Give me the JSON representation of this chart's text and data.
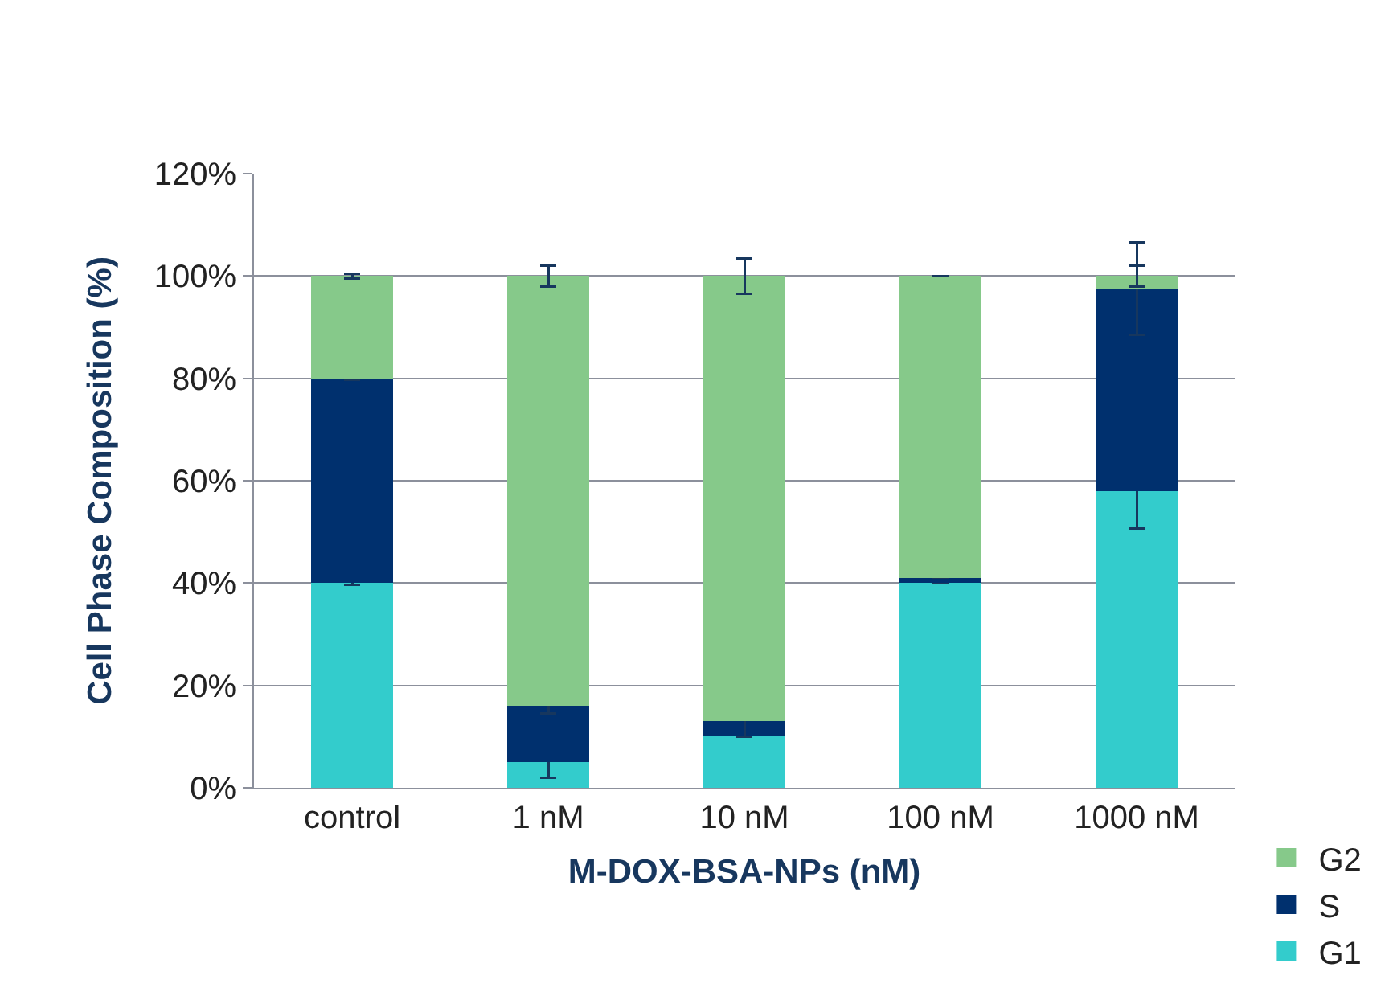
{
  "chart_data": {
    "type": "bar",
    "stacked": true,
    "xlabel": "M-DOX-BSA-NPs (nM)",
    "ylabel": "Cell Phase Composition (%)",
    "categories": [
      "control",
      "1 nM",
      "10 nM",
      "100 nM",
      "1000 nM"
    ],
    "series": [
      {
        "name": "G1",
        "color": "#33cccc",
        "values": [
          40,
          5,
          10,
          40,
          58
        ],
        "errors": [
          0.3,
          3,
          null,
          null,
          7.4
        ]
      },
      {
        "name": "S",
        "color": "#00306e",
        "values": [
          40,
          11,
          3,
          1,
          39.5
        ],
        "errors": [
          0.3,
          1.5,
          3,
          null,
          9
        ]
      },
      {
        "name": "G2",
        "color": "#86c98a",
        "values": [
          20,
          84,
          87,
          59,
          2.5
        ],
        "errors": [
          0.5,
          2,
          3.5,
          null,
          2
        ]
      }
    ],
    "ylim": [
      0,
      120
    ],
    "yticks": [
      {
        "value": 0,
        "label": "0%"
      },
      {
        "value": 20,
        "label": "20%"
      },
      {
        "value": 40,
        "label": "40%"
      },
      {
        "value": 60,
        "label": "60%"
      },
      {
        "value": 80,
        "label": "80%"
      },
      {
        "value": 100,
        "label": "100%"
      },
      {
        "value": 120,
        "label": "120%"
      }
    ],
    "grid": "y",
    "legend": "bottom right"
  }
}
